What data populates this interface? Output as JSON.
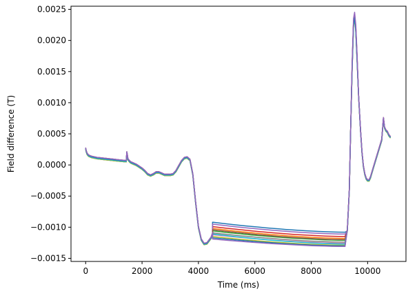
{
  "chart_data": {
    "type": "line",
    "title": "",
    "xlabel": "Time (ms)",
    "ylabel": "Field difference (T)",
    "xlim": [
      -520,
      11360
    ],
    "ylim": [
      -0.00155,
      0.00255
    ],
    "xticks": [
      0,
      2000,
      4000,
      6000,
      8000,
      10000
    ],
    "xtick_labels": [
      "0",
      "2000",
      "4000",
      "6000",
      "8000",
      "10000"
    ],
    "yticks": [
      -0.0015,
      -0.001,
      -0.0005,
      0.0,
      0.0005,
      0.001,
      0.0015,
      0.002,
      0.0025
    ],
    "ytick_labels": [
      "−0.0015",
      "−0.0010",
      "−0.0005",
      "0.0000",
      "0.0005",
      "0.0010",
      "0.0015",
      "0.0020",
      "0.0025"
    ],
    "grid": false,
    "legend": "none",
    "base_curve": {
      "x": [
        0,
        20,
        50,
        100,
        200,
        400,
        600,
        800,
        1000,
        1200,
        1440,
        1460,
        1480,
        1500,
        1550,
        1600,
        1700,
        1800,
        1900,
        2000,
        2100,
        2200,
        2300,
        2400,
        2500,
        2600,
        2700,
        2800,
        2900,
        3000,
        3100,
        3200,
        3300,
        3400,
        3500,
        3600,
        3700,
        3800,
        3900,
        4000,
        4100,
        4200,
        4300,
        4400,
        4450,
        4500
      ],
      "y": [
        0.00026,
        0.00022,
        0.00018,
        0.00015,
        0.00013,
        0.00011,
        0.0001,
        9e-05,
        8e-05,
        7e-05,
        6e-05,
        0.0002,
        0.00015,
        9e-05,
        6e-05,
        4e-05,
        2e-05,
        0.0,
        -3e-05,
        -6e-05,
        -0.0001,
        -0.00015,
        -0.00017,
        -0.00015,
        -0.00012,
        -0.00012,
        -0.00014,
        -0.00016,
        -0.00016,
        -0.00016,
        -0.00015,
        -0.0001,
        -2e-05,
        6e-05,
        0.00011,
        0.00012,
        8e-05,
        -0.00015,
        -0.0006,
        -0.001,
        -0.0012,
        -0.00127,
        -0.00126,
        -0.0012,
        -0.00117,
        -0.0011
      ]
    },
    "tail_curve": {
      "x": [
        9280,
        9350,
        9400,
        9450,
        9500,
        9540,
        9580,
        9620,
        9680,
        9750,
        9800,
        9850,
        9900,
        9950,
        10000,
        10050,
        10100,
        10200,
        10300,
        10400,
        10500,
        10560,
        10600,
        10650,
        10700,
        10750,
        10800
      ],
      "y": [
        -0.00105,
        -0.0004,
        0.0006,
        0.0016,
        0.0023,
        0.0024,
        0.0022,
        0.0018,
        0.0011,
        0.00055,
        0.0002,
        -2e-05,
        -0.00015,
        -0.00022,
        -0.00025,
        -0.00025,
        -0.0002,
        -5e-05,
        0.0001,
        0.00025,
        0.0004,
        0.00075,
        0.0006,
        0.00055,
        0.00053,
        0.00048,
        0.00045
      ]
    },
    "plateau_x": [
      4500,
      9200
    ],
    "series": [
      {
        "color": "#1f77b4",
        "plateau_start": -0.00092,
        "plateau_end": -0.00108,
        "spike_peak": 0.00242
      },
      {
        "color": "#ff7f0e",
        "plateau_start": -0.00102,
        "plateau_end": -0.00118,
        "spike_peak": 0.00238
      },
      {
        "color": "#2ca02c",
        "plateau_start": -0.00106,
        "plateau_end": -0.00121,
        "spike_peak": 0.00236
      },
      {
        "color": "#d62728",
        "plateau_start": -0.00099,
        "plateau_end": -0.00115,
        "spike_peak": 0.0024
      },
      {
        "color": "#9467bd",
        "plateau_start": -0.00095,
        "plateau_end": -0.00111,
        "spike_peak": 0.00241
      },
      {
        "color": "#8c564b",
        "plateau_start": -0.00104,
        "plateau_end": -0.0012,
        "spike_peak": 0.00237
      },
      {
        "color": "#e377c2",
        "plateau_start": -0.00112,
        "plateau_end": -0.00126,
        "spike_peak": 0.00235
      },
      {
        "color": "#7f7f7f",
        "plateau_start": -0.00109,
        "plateau_end": -0.00124,
        "spike_peak": 0.00236
      },
      {
        "color": "#bcbd22",
        "plateau_start": -0.00115,
        "plateau_end": -0.00129,
        "spike_peak": 0.00234
      },
      {
        "color": "#17becf",
        "plateau_start": -0.00111,
        "plateau_end": -0.00127,
        "spike_peak": 0.00235
      },
      {
        "color": "#1f77b4",
        "plateau_start": -0.00117,
        "plateau_end": -0.0013,
        "spike_peak": 0.00236
      },
      {
        "color": "#9467bd",
        "plateau_start": -0.00119,
        "plateau_end": -0.00131,
        "spike_peak": 0.00244
      }
    ]
  }
}
